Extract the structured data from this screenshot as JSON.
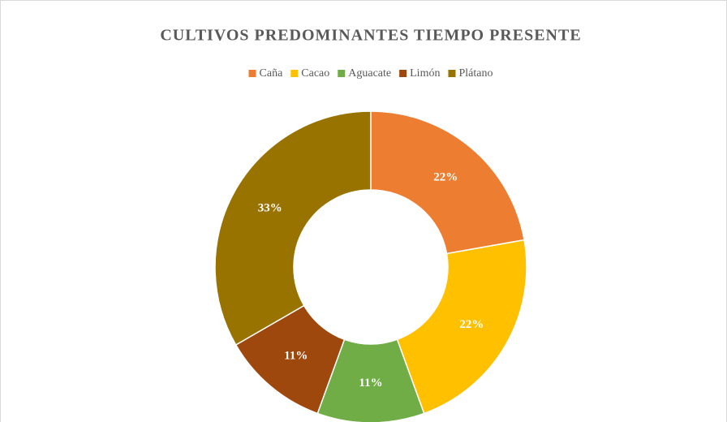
{
  "chart_data": {
    "type": "donut",
    "title": "CULTIVOS PREDOMINANTES TIEMPO PRESENTE",
    "categories": [
      "Caña",
      "Cacao",
      "Aguacate",
      "Limón",
      "Plátano"
    ],
    "values": [
      22,
      22,
      11,
      11,
      33
    ],
    "value_labels": [
      "22%",
      "22%",
      "11%",
      "11%",
      "33%"
    ],
    "colors": [
      "#ED7D31",
      "#FFC000",
      "#70AD47",
      "#9E480E",
      "#997300"
    ],
    "legend": "top"
  }
}
